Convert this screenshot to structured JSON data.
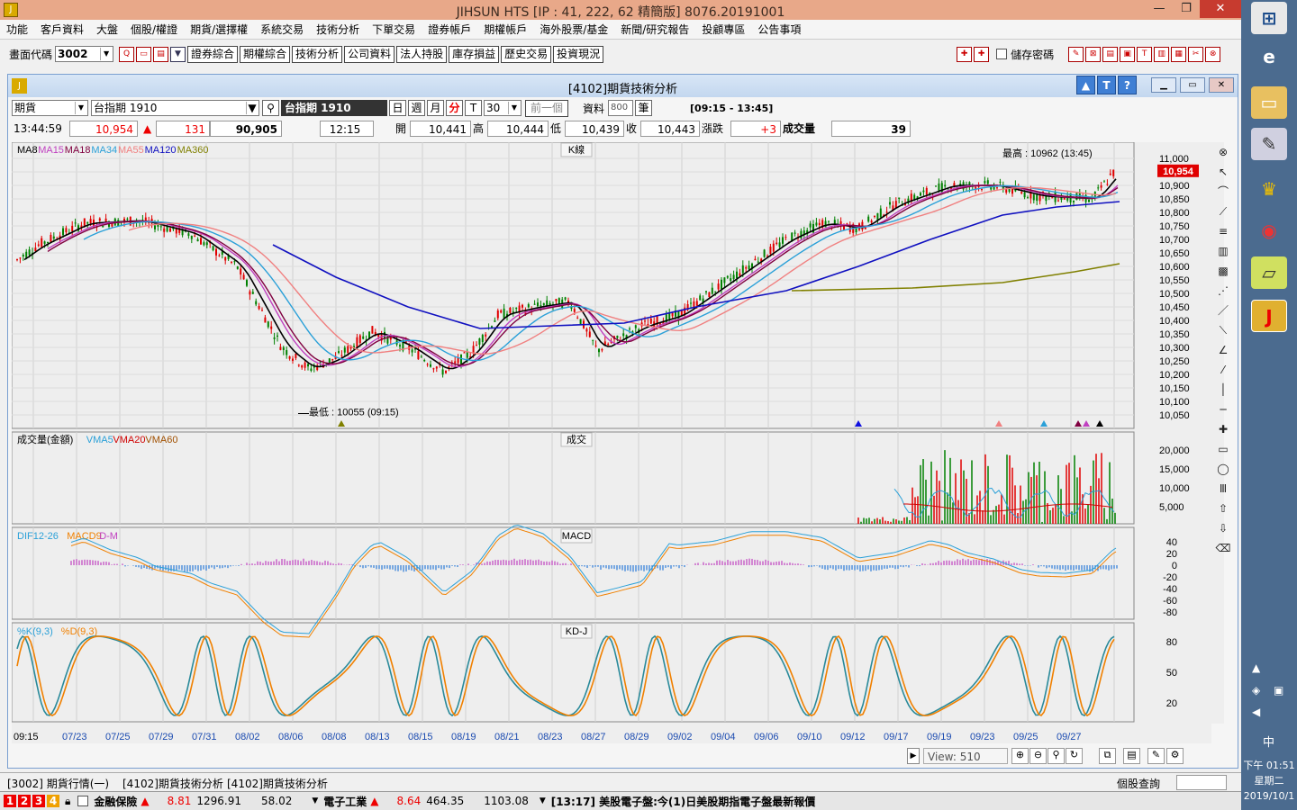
{
  "app": {
    "title": "JIHSUN HTS     [IP : 41, 222, 62 精簡版] 8076.20191001"
  },
  "menu": [
    "功能",
    "客戶資料",
    "大盤",
    "個股/權證",
    "期貨/選擇權",
    "系統交易",
    "技術分析",
    "下單交易",
    "證券帳戶",
    "期權帳戶",
    "海外股票/基金",
    "新聞/研究報告",
    "投顧專區",
    "公告事項"
  ],
  "toolbar": {
    "code_label": "畫面代碼",
    "code_value": "3002",
    "buttons": [
      "證券綜合",
      "期權綜合",
      "技術分析",
      "公司資料",
      "法人持股",
      "庫存損益",
      "歷史交易",
      "投資現況"
    ],
    "save_pwd": "儲存密碼"
  },
  "child": {
    "title": "[4102]期貨技術分析",
    "help": [
      "▲",
      "T",
      "?"
    ],
    "type_select": "期貨",
    "symbol_select": "台指期 1910",
    "symbol_name": "台指期 1910",
    "periods": [
      "日",
      "週",
      "月",
      "分",
      "T"
    ],
    "minutes": "30",
    "prev_btn": "前一個",
    "data_label": "資料",
    "data_count": "800",
    "data_unit": "筆",
    "session": "[09:15 - 13:45]"
  },
  "quote": {
    "time": "13:44:59",
    "price": "10,954",
    "change": "131",
    "volume_total": "90,905",
    "bar_time": "12:15",
    "open_label": "開",
    "open": "10,441",
    "high_label": "高",
    "high": "10,444",
    "low_label": "低",
    "low": "10,439",
    "close_label": "收",
    "close": "10,443",
    "chg_label": "漲跌",
    "chg": "+3",
    "vol_label": "成交量",
    "vol": "39"
  },
  "panels": {
    "kline": {
      "label": "K線",
      "legend": [
        {
          "t": "MA8",
          "c": "#000000"
        },
        {
          "t": "MA15",
          "c": "#c040c0"
        },
        {
          "t": "MA18",
          "c": "#800040"
        },
        {
          "t": "MA34",
          "c": "#2aa0d8"
        },
        {
          "t": "MA55",
          "c": "#f08080"
        },
        {
          "t": "MA120",
          "c": "#1010c0"
        },
        {
          "t": "MA360",
          "c": "#808000"
        }
      ],
      "high_note": "最高 : 10962 (13:45)",
      "low_note": "最低 : 10055 (09:15)",
      "price_tag": "10,954",
      "yticks": [
        "11,000",
        "10,950",
        "10,900",
        "10,850",
        "10,800",
        "10,750",
        "10,700",
        "10,650",
        "10,600",
        "10,550",
        "10,500",
        "10,450",
        "10,400",
        "10,350",
        "10,300",
        "10,250",
        "10,200",
        "10,150",
        "10,100",
        "10,050"
      ]
    },
    "volume": {
      "label": "成交",
      "legend": [
        {
          "t": "成交量(金額)",
          "c": "#000000"
        },
        {
          "t": "VMA5",
          "c": "#2aa0d8"
        },
        {
          "t": "VMA20",
          "c": "#d00000"
        },
        {
          "t": "VMA60",
          "c": "#a05000"
        }
      ],
      "yticks": [
        "20,000",
        "15,000",
        "10,000",
        "5,000"
      ]
    },
    "macd": {
      "label": "MACD",
      "legend": [
        {
          "t": "DIF12-26",
          "c": "#2aa0d8"
        },
        {
          "t": "MACD9",
          "c": "#f08000"
        },
        {
          "t": "D-M",
          "c": "#c040c0"
        }
      ],
      "yticks": [
        "40",
        "20",
        "0",
        "-20",
        "-40",
        "-60",
        "-80"
      ]
    },
    "kd": {
      "label": "KD-J",
      "legend": [
        {
          "t": "%K(9,3)",
          "c": "#2aa0d8"
        },
        {
          "t": "%D(9,3)",
          "c": "#f08000"
        }
      ],
      "yticks": [
        "80",
        "50",
        "20"
      ]
    }
  },
  "xaxis": [
    "09:15",
    "07/23",
    "07/25",
    "07/29",
    "07/31",
    "08/02",
    "08/06",
    "08/08",
    "08/13",
    "08/15",
    "08/19",
    "08/21",
    "08/23",
    "08/27",
    "08/29",
    "09/02",
    "09/04",
    "09/06",
    "09/10",
    "09/12",
    "09/17",
    "09/19",
    "09/23",
    "09/25",
    "09/27"
  ],
  "view": {
    "label": "View:",
    "value": "510"
  },
  "tabs": [
    "[3002] 期貨行情(一)",
    "[4102]期貨技術分析",
    "[4102]期貨技術分析"
  ],
  "stock_query": "個股查詢",
  "ticker": {
    "pages": [
      "1",
      "2",
      "3",
      "4"
    ],
    "items": [
      {
        "name": "金融保險",
        "chg": "8.81",
        "idx": "1296.91",
        "vol": "58.02"
      },
      {
        "name": "電子工業",
        "chg": "8.64",
        "idx": "464.35",
        "vol": "1103.08"
      }
    ],
    "news": "[13:17] 美股電子盤:今(1)日美股期指電子盤最新報價"
  },
  "taskbar": {
    "time": "下午 01:51",
    "weekday": "星期二",
    "date": "2019/10/1",
    "ime": "中"
  },
  "colors": {
    "up": "#e00000",
    "down": "#008000",
    "ma8": "#000000",
    "ma15": "#c040c0",
    "ma18": "#800040",
    "ma34": "#2aa0d8",
    "ma55": "#f08080",
    "ma120": "#1010c0",
    "ma360": "#808000"
  }
}
